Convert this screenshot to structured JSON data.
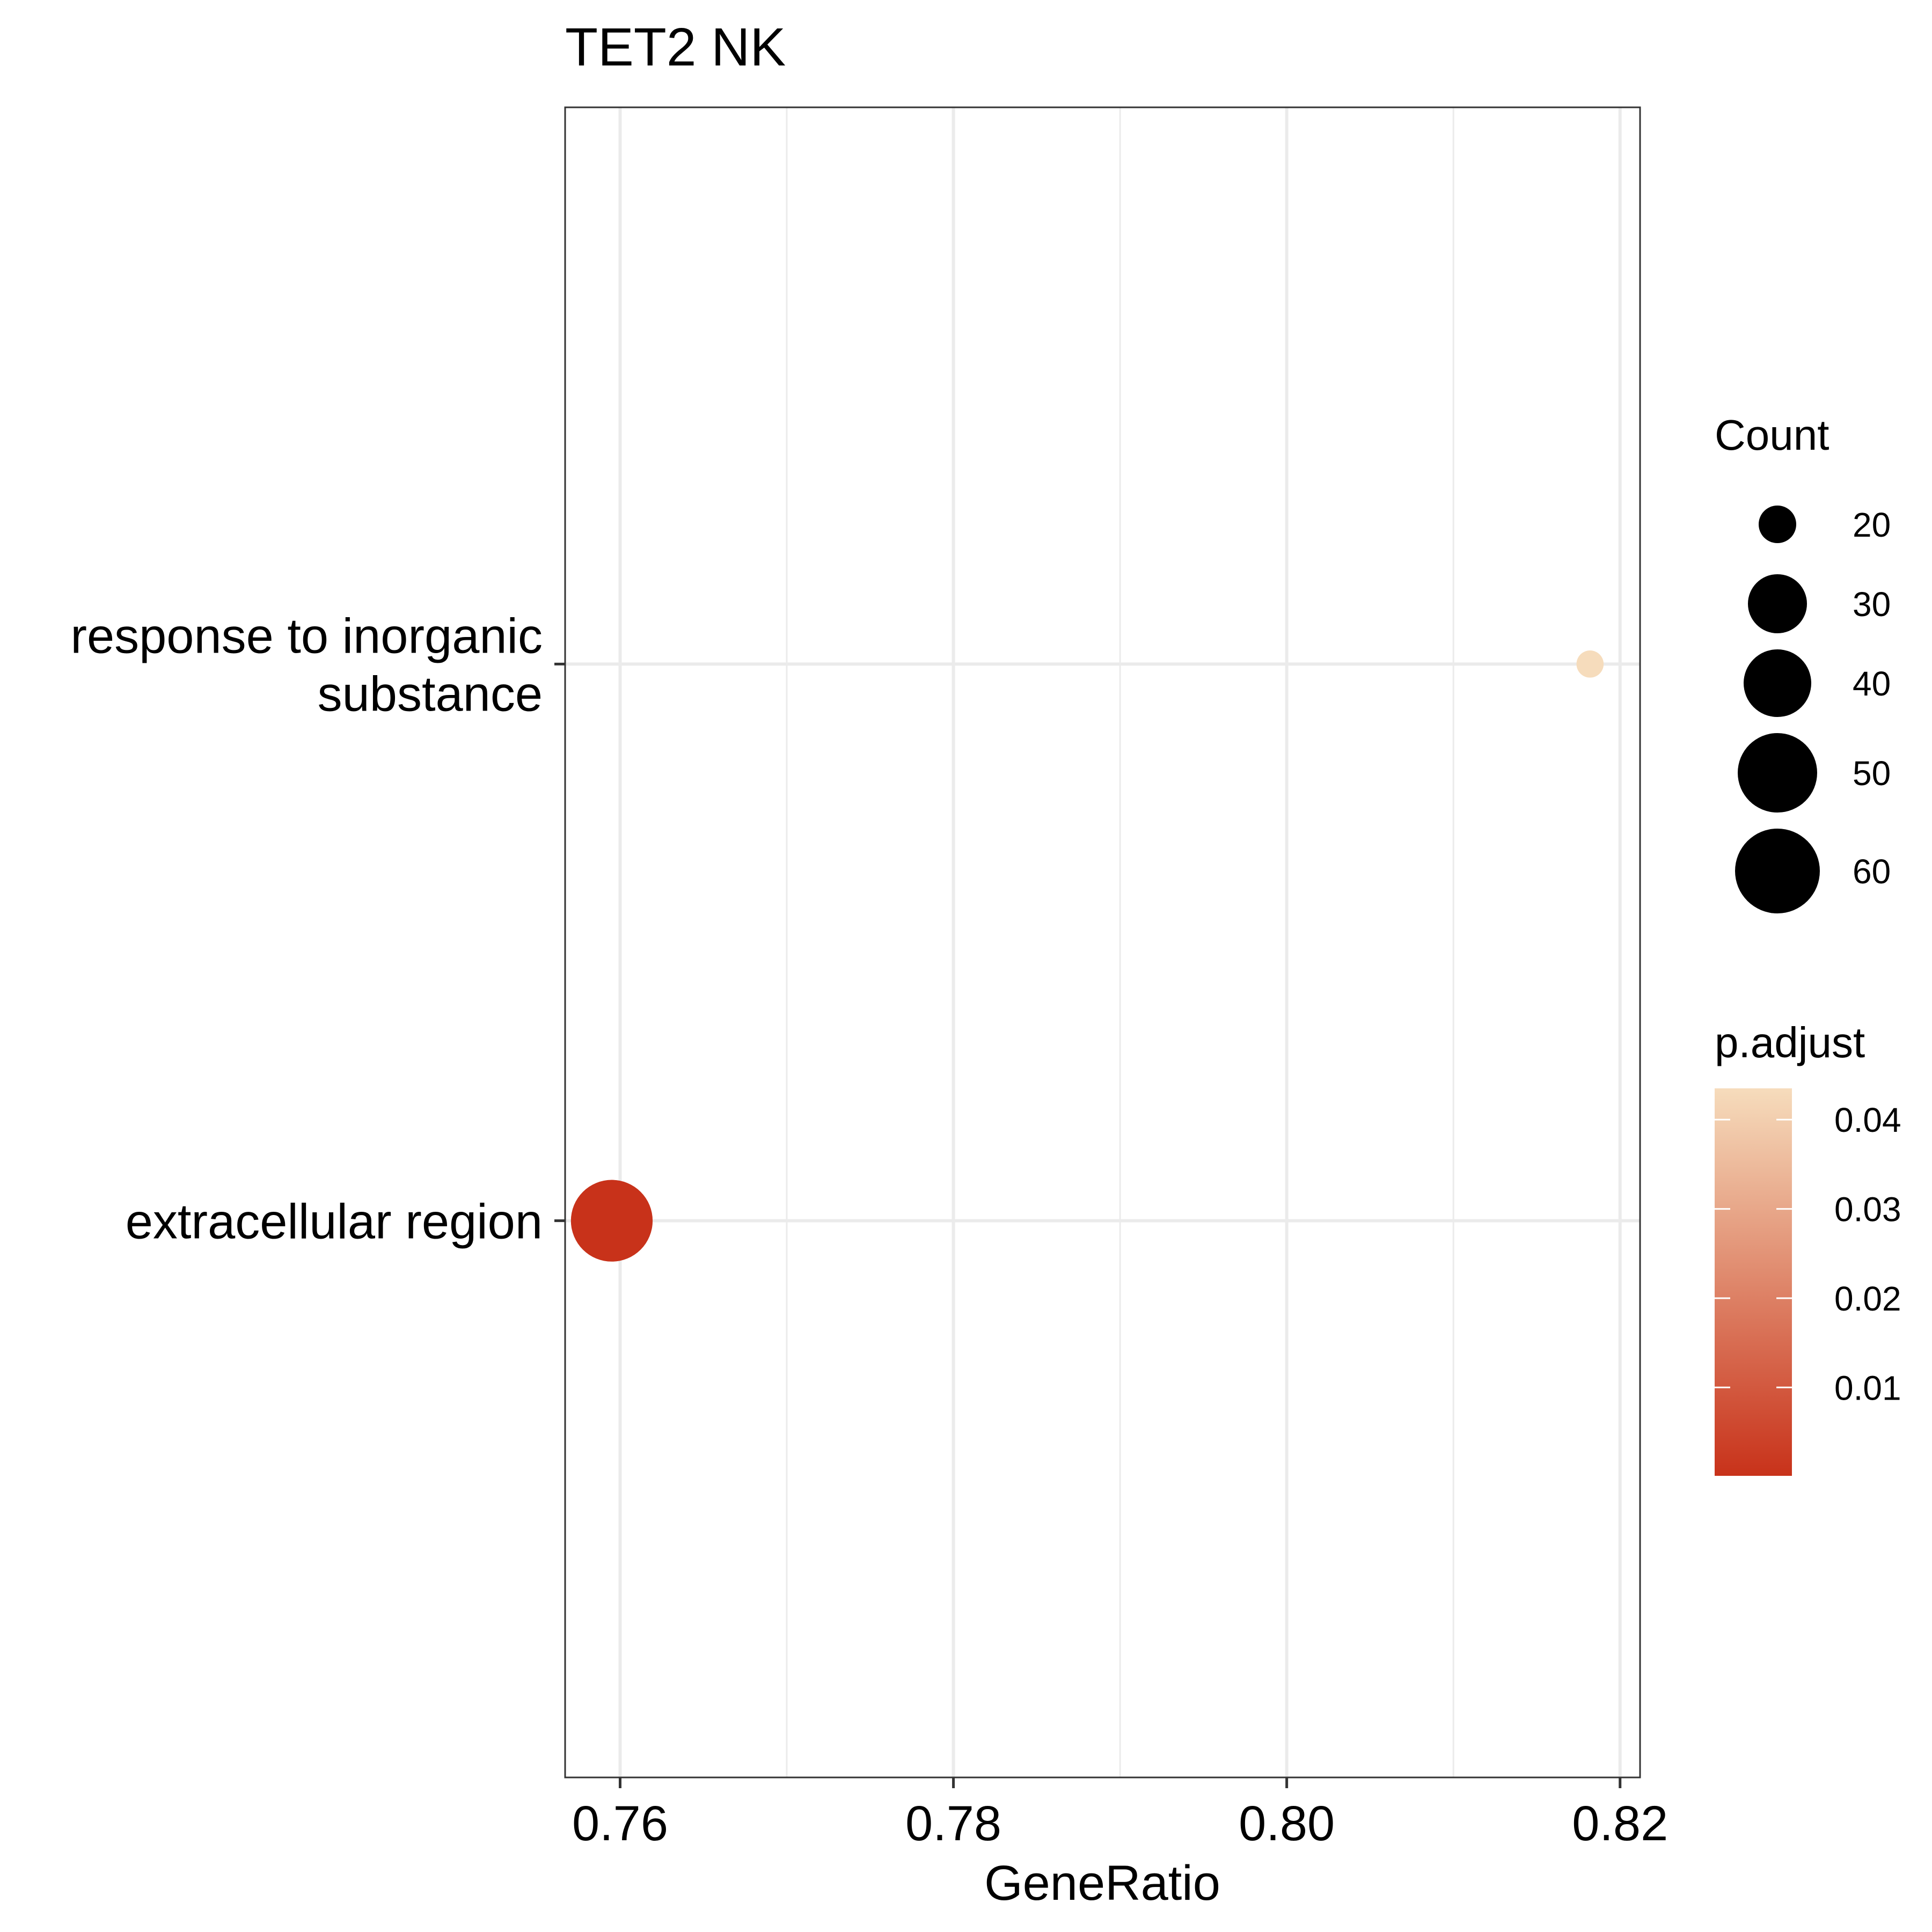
{
  "chart_data": {
    "type": "scatter",
    "title": "TET2 NK",
    "xlabel": "GeneRatio",
    "ylabel": "",
    "xlim": [
      0.7567,
      0.8212
    ],
    "xticks": [
      "0.76",
      "0.78",
      "0.80",
      "0.82"
    ],
    "xtick_values": [
      0.76,
      0.78,
      0.8,
      0.82
    ],
    "x_minor_gridlines": [
      0.77,
      0.79,
      0.81
    ],
    "categories": [
      "response to inorganic substance",
      "extracellular region"
    ],
    "category_lines": [
      [
        "response to inorganic",
        "substance"
      ],
      [
        "extracellular region"
      ]
    ],
    "points": [
      {
        "category": "response to inorganic substance",
        "gene_ratio": 0.8182,
        "count": 18,
        "p_adjust": 0.0435
      },
      {
        "category": "extracellular region",
        "gene_ratio": 0.7595,
        "count": 60,
        "p_adjust": 0.0001
      }
    ],
    "legend_count": {
      "title": "Count",
      "values": [
        20,
        30,
        40,
        50,
        60
      ],
      "labels": [
        "20",
        "30",
        "40",
        "50",
        "60"
      ]
    },
    "legend_padjust": {
      "title": "p.adjust",
      "ticks": [
        0.04,
        0.03,
        0.02,
        0.01
      ],
      "labels": [
        "0.04",
        "0.03",
        "0.02",
        "0.01"
      ],
      "range": [
        0.0001,
        0.0435
      ],
      "color_low": "#C8321A",
      "color_high": "#F6DCBC"
    },
    "grid": true,
    "legend_position": "right",
    "theme": "bw"
  }
}
